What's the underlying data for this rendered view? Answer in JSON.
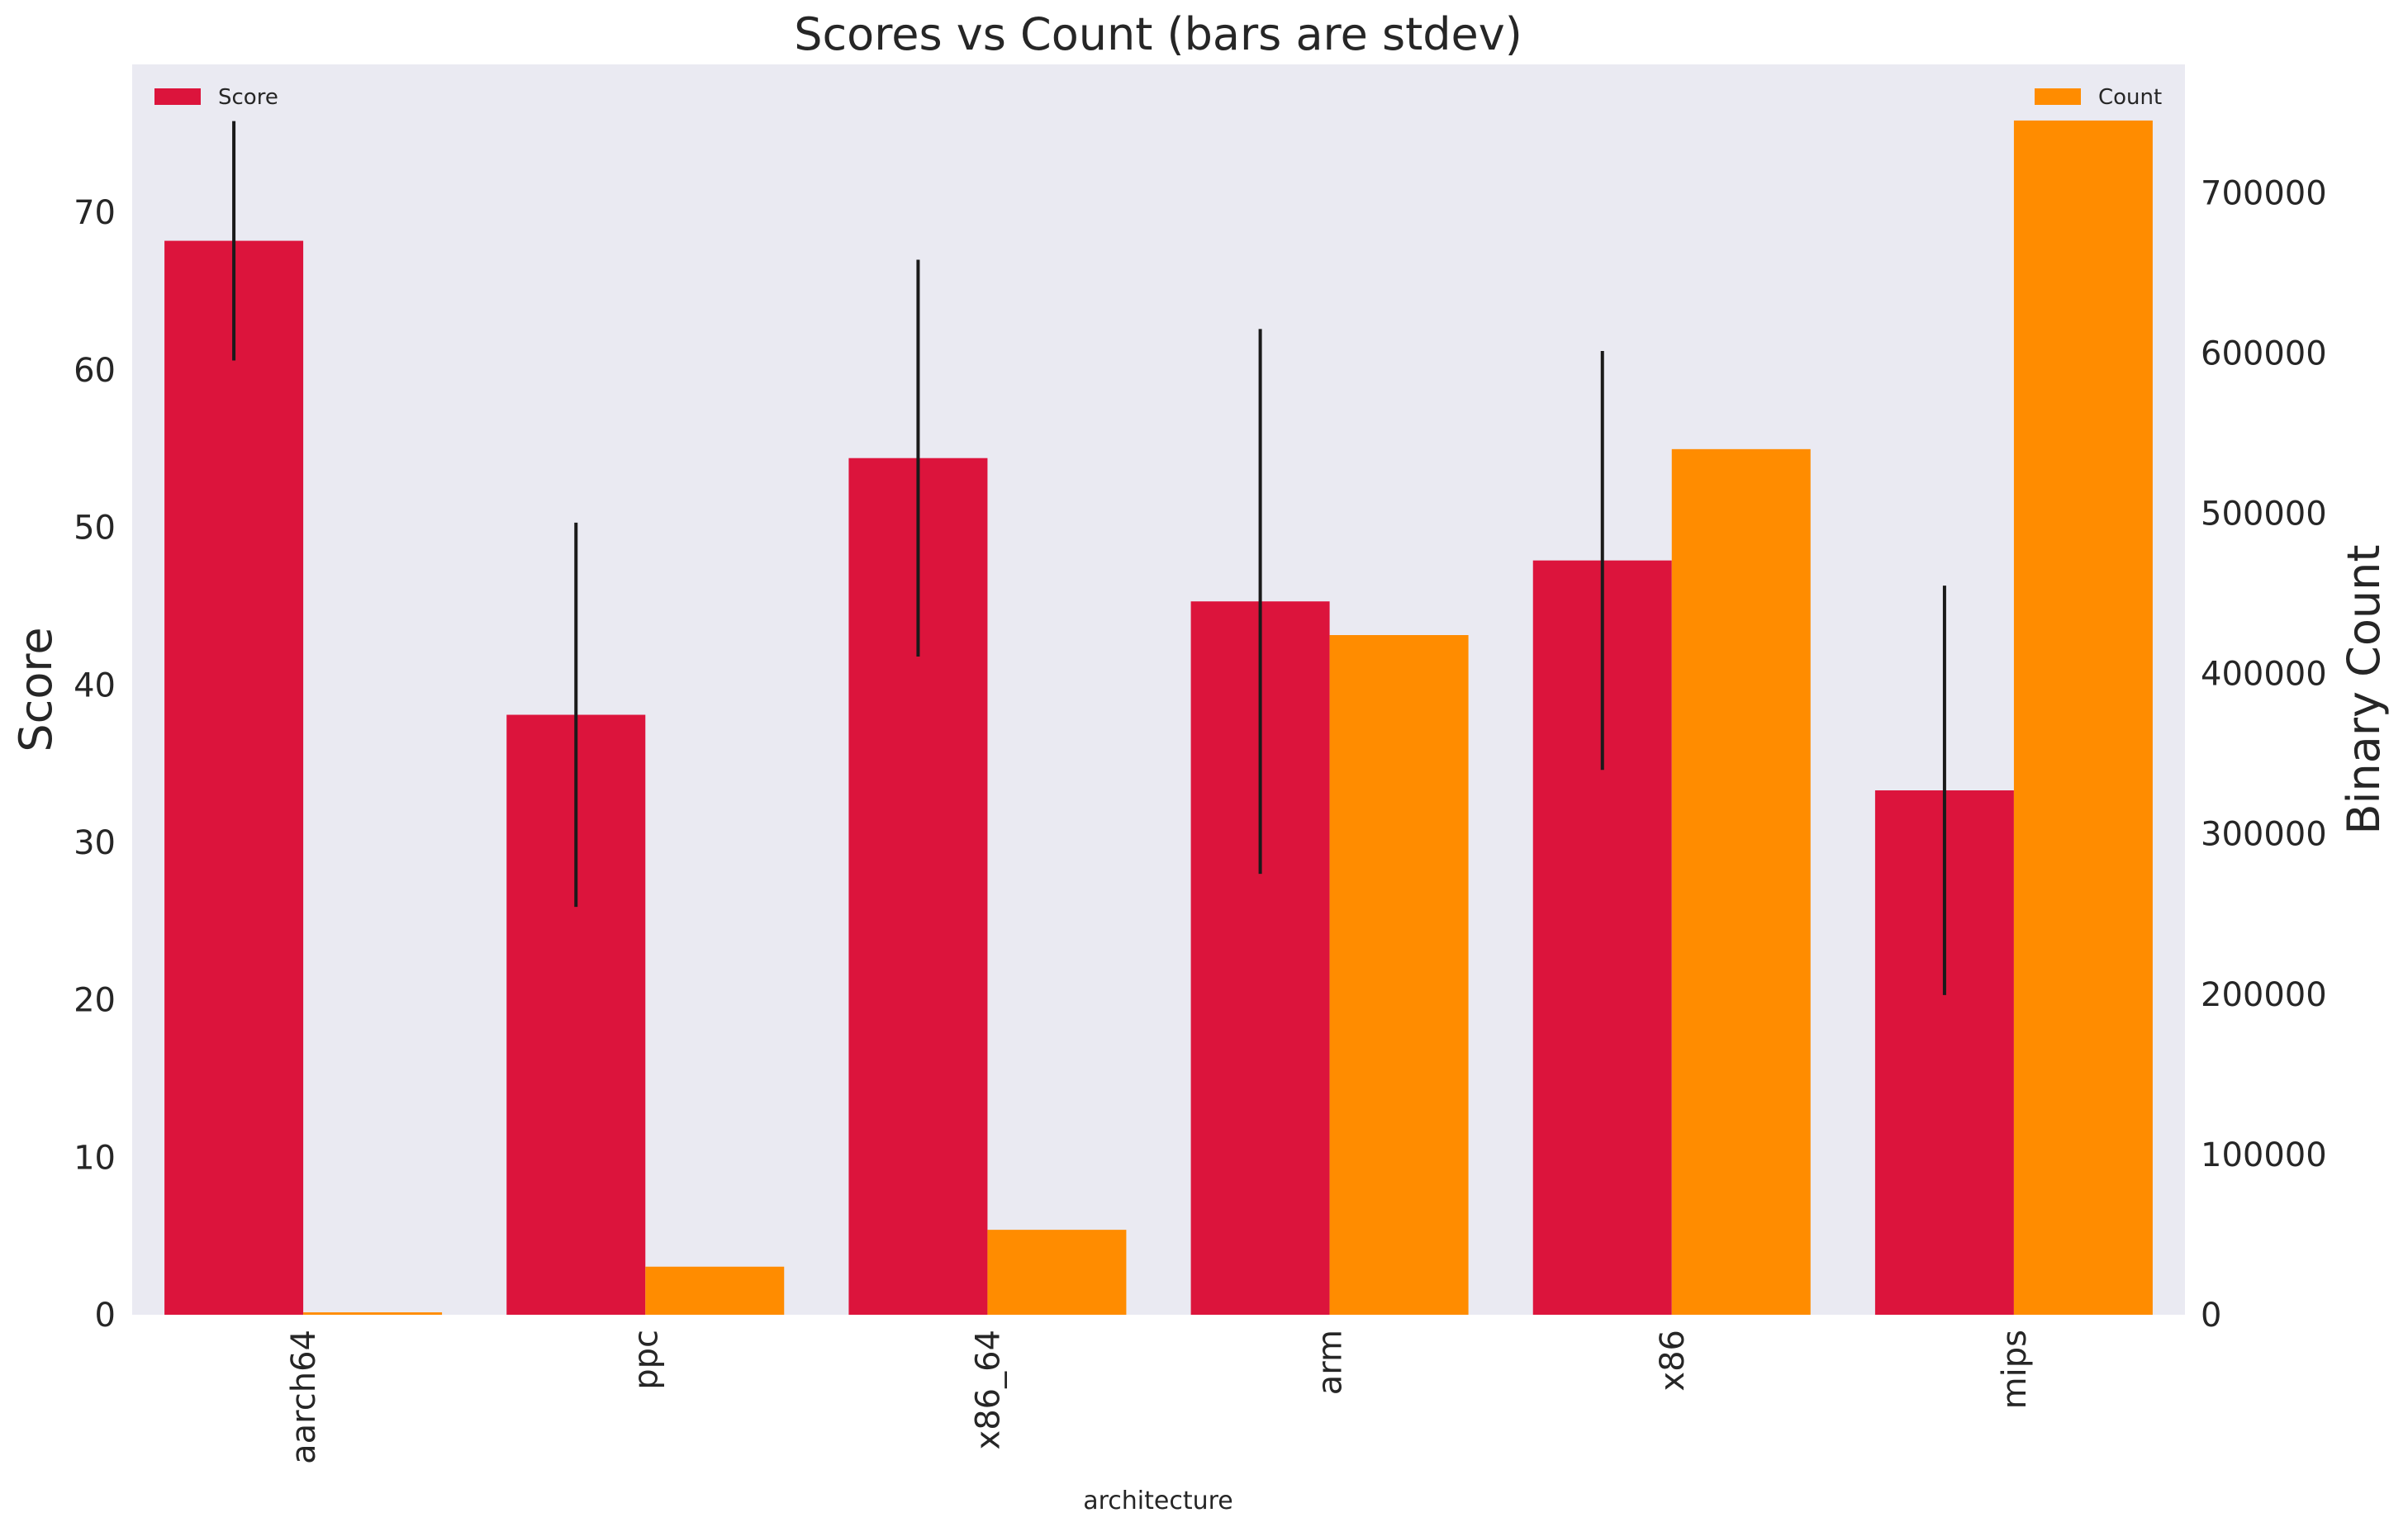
{
  "chart_data": {
    "type": "bar",
    "title": "Scores vs Count (bars are stdev)",
    "xlabel": "architecture",
    "ylabel": "Score",
    "y2label": "Binary Count",
    "categories": [
      "aarch64",
      "ppc",
      "x86_64",
      "arm",
      "x86",
      "mips"
    ],
    "series": [
      {
        "name": "Score",
        "axis": "left",
        "color": "#dc143c",
        "values": [
          68.2,
          38.1,
          54.4,
          45.3,
          47.9,
          33.3
        ],
        "error": [
          7.6,
          12.2,
          12.6,
          17.3,
          13.3,
          13.0
        ]
      },
      {
        "name": "Count",
        "axis": "right",
        "color": "#ff8c00",
        "values": [
          1500,
          30000,
          53000,
          424000,
          540000,
          745000
        ]
      }
    ],
    "ylim": [
      0,
      79.4
    ],
    "y2lim": [
      0,
      780000
    ],
    "yticks": [
      0,
      10,
      20,
      30,
      40,
      50,
      60,
      70
    ],
    "y2ticks": [
      0,
      100000,
      200000,
      300000,
      400000,
      500000,
      600000,
      700000
    ],
    "grid": false,
    "legend_left": "top-left",
    "legend_right": "top-right",
    "background_color": "#eaeaf2",
    "error_color": "#1a1a1a"
  }
}
